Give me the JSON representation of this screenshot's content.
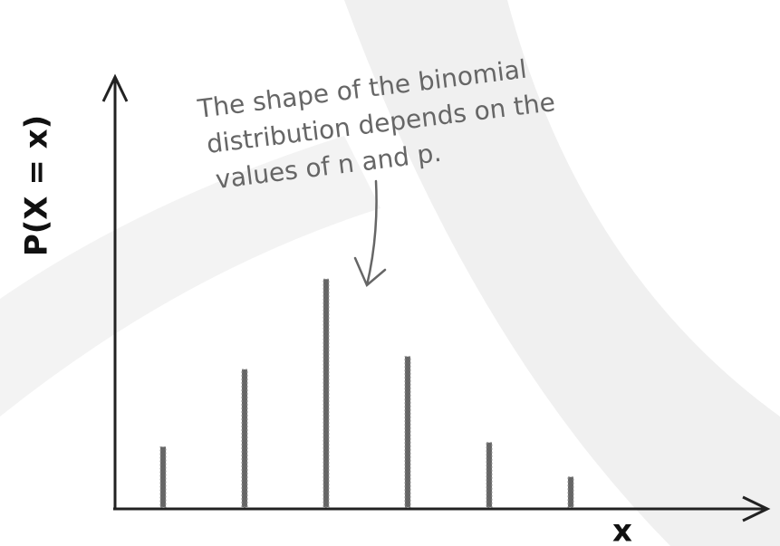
{
  "chart_data": {
    "type": "bar",
    "ylabel": "P(X = x)",
    "xlabel": "x",
    "annotation": [
      "The shape of the binomial",
      "distribution depends on the",
      "values of n and p."
    ],
    "categories": [
      null,
      null,
      null,
      null,
      null,
      null
    ],
    "values": [
      14,
      32,
      53,
      35,
      15,
      7
    ],
    "color": "#666666",
    "ylim": [
      0,
      100
    ]
  }
}
